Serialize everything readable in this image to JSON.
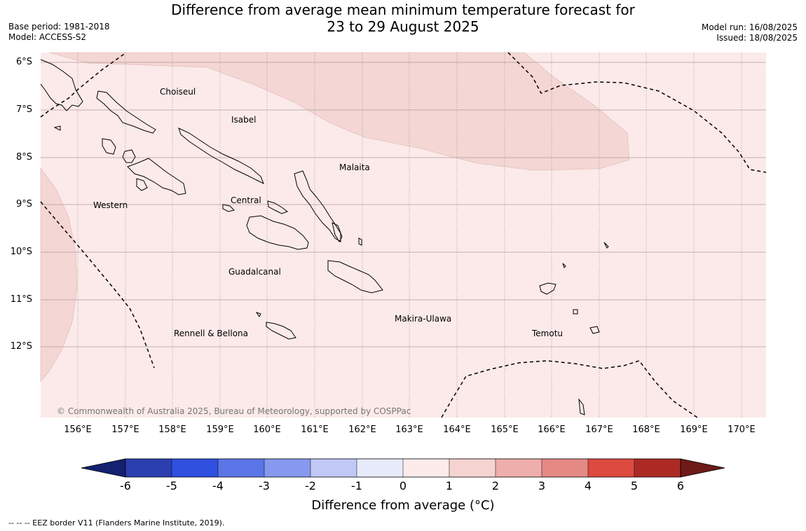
{
  "header": {
    "title_line1": "Difference from average mean minimum temperature forecast for",
    "title_line2": "23 to 29 August 2025",
    "base_period": "Base period: 1981-2018",
    "model": "Model: ACCESS-S2",
    "model_run": "Model run: 16/08/2025",
    "issued": "Issued: 18/08/2025"
  },
  "map": {
    "lat_labels": [
      "6°S",
      "7°S",
      "8°S",
      "9°S",
      "10°S",
      "11°S",
      "12°S"
    ],
    "lon_labels": [
      "156°E",
      "157°E",
      "158°E",
      "159°E",
      "160°E",
      "161°E",
      "162°E",
      "163°E",
      "164°E",
      "165°E",
      "166°E",
      "167°E",
      "168°E",
      "169°E",
      "170°E"
    ],
    "regions": {
      "choiseul": "Choiseul",
      "isabel": "Isabel",
      "malaita": "Malaita",
      "western": "Western",
      "central": "Central",
      "guadalcanal": "Guadalcanal",
      "makira": "Makira-Ulawa",
      "rennell": "Rennell & Bellona",
      "temotu": "Temotu"
    },
    "copyright": "© Commonwealth of Australia 2025, Bureau of Meteorology, supported by COSPPac",
    "colors": {
      "base_fill": "#fbeae9",
      "warm_fill": "#f4d6d4",
      "grid": "#b09a9a"
    }
  },
  "colorbar": {
    "ticks": [
      "-6",
      "-5",
      "-4",
      "-3",
      "-2",
      "-1",
      "0",
      "1",
      "2",
      "3",
      "4",
      "5",
      "6"
    ],
    "colors": [
      "#142170",
      "#2b3fb0",
      "#3050e0",
      "#5a75e6",
      "#8699ee",
      "#c0c9f5",
      "#e8ebfc",
      "#fcebea",
      "#f5d3d1",
      "#eeaeab",
      "#e48983",
      "#dd4a40",
      "#ad2a24",
      "#6e1a16"
    ],
    "title": "Difference from average (°C)"
  },
  "footnote": "--  --  -- EEZ border V11 (Flanders Marine Institute, 2019)."
}
